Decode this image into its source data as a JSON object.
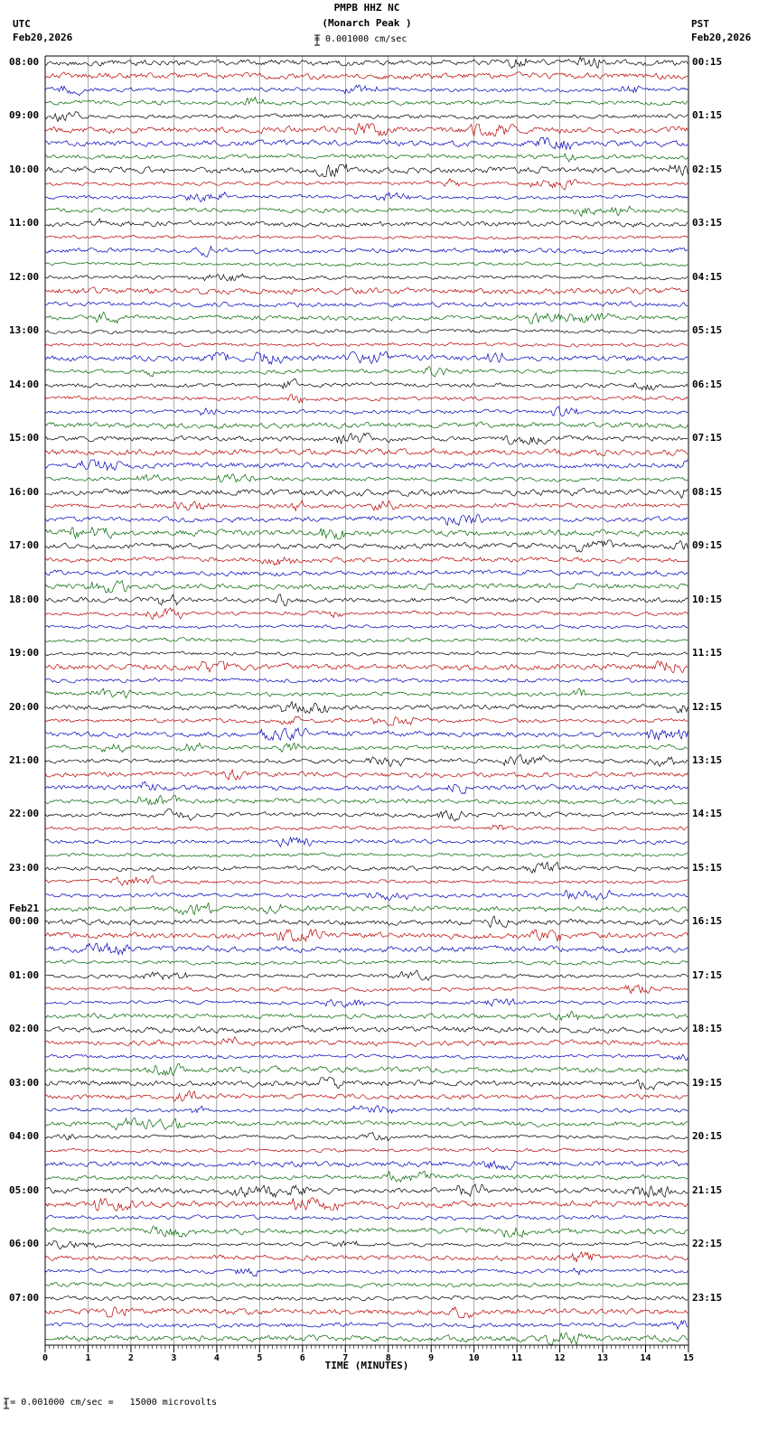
{
  "header": {
    "title": "PMPB HHZ NC",
    "subtitle": "(Monarch Peak )",
    "left_tz": "UTC",
    "left_date": "Feb20,2026",
    "right_tz": "PST",
    "right_date": "Feb20,2026",
    "scale_label": "= 0.001000 cm/sec"
  },
  "footer": {
    "marker": "x",
    "note": "= 0.001000 cm/sec =   15000 microvolts"
  },
  "x_axis": {
    "label": "TIME (MINUTES)",
    "ticks": [
      "0",
      "1",
      "2",
      "3",
      "4",
      "5",
      "6",
      "7",
      "8",
      "9",
      "10",
      "11",
      "12",
      "13",
      "14",
      "15"
    ],
    "range_minutes": [
      0,
      15
    ]
  },
  "rows": {
    "utc_labels": [
      "08:00",
      "09:00",
      "10:00",
      "11:00",
      "12:00",
      "13:00",
      "14:00",
      "15:00",
      "16:00",
      "17:00",
      "18:00",
      "19:00",
      "20:00",
      "21:00",
      "22:00",
      "23:00",
      "00:00",
      "01:00",
      "02:00",
      "03:00",
      "04:00",
      "05:00",
      "06:00",
      "07:00"
    ],
    "utc_extra_date": {
      "index": 16,
      "label": "Feb21"
    },
    "pst_labels": [
      "00:15",
      "01:15",
      "02:15",
      "03:15",
      "04:15",
      "05:15",
      "06:15",
      "07:15",
      "08:15",
      "09:15",
      "10:15",
      "11:15",
      "12:15",
      "13:15",
      "14:15",
      "15:15",
      "16:15",
      "17:15",
      "18:15",
      "19:15",
      "20:15",
      "21:15",
      "22:15",
      "23:15"
    ]
  },
  "trace_colors": [
    "#000000",
    "#bb0000",
    "#0000bb",
    "#006600"
  ],
  "chart_data": {
    "type": "line",
    "title": "PMPB HHZ NC (Monarch Peak ) helicorder",
    "xlabel": "TIME (MINUTES)",
    "x_range_minutes": [
      0,
      15
    ],
    "hours_shown": 24,
    "traces_per_hour": 4,
    "minutes_per_trace": 15,
    "total_traces": 96,
    "start_utc": "Feb20,2026 08:00 UTC",
    "end_utc": "Feb21,2026 08:00 UTC",
    "timezone_offset": "PST = UTC-8",
    "trace_color_cycle": [
      "black",
      "red",
      "blue",
      "green"
    ],
    "amplitude_scale": "0.001000 cm/sec = 15000 microvolts",
    "description": "Continuous 24-hour seismogram; 96 rows of 15 minutes each showing low-amplitude ambient background noise with small sporadic wiggles and no large earthquake signals; vertical gridlines every 1 minute."
  }
}
